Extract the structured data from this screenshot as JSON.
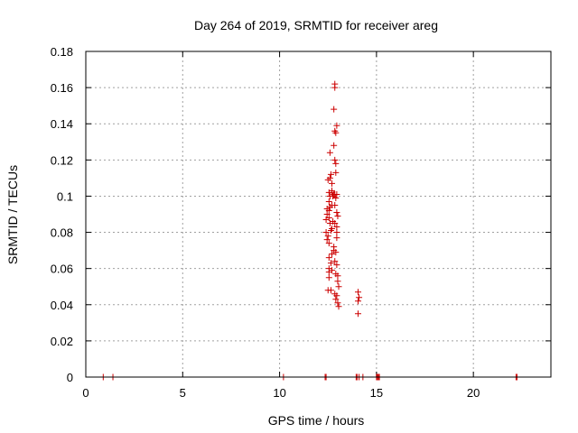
{
  "chart_data": {
    "type": "scatter",
    "title": "Day 264 of 2019, SRMTID for receiver areg",
    "xlabel": "GPS time / hours",
    "ylabel": "SRMTID / TECUs",
    "xlim": [
      0,
      24
    ],
    "ylim": [
      0,
      0.18
    ],
    "xticks": [
      0,
      5,
      10,
      15,
      20
    ],
    "yticks": [
      0,
      0.02,
      0.04,
      0.06,
      0.08,
      0.1,
      0.12,
      0.14,
      0.16,
      0.18
    ],
    "x_tick_labels": [
      "0",
      "5",
      "10",
      "15",
      "20"
    ],
    "y_tick_labels": [
      "0",
      "0.02",
      "0.04",
      "0.06",
      "0.08",
      "0.1",
      "0.12",
      "0.14",
      "0.16",
      "0.18"
    ],
    "grid": true,
    "marker": "+",
    "marker_color": "#cc0000",
    "series": [
      {
        "name": "SRMTID",
        "points": [
          [
            0.9,
            0
          ],
          [
            1.4,
            0
          ],
          [
            10.2,
            0
          ],
          [
            12.35,
            0
          ],
          [
            12.4,
            0
          ],
          [
            13.95,
            0
          ],
          [
            14.0,
            0
          ],
          [
            14.1,
            0
          ],
          [
            14.3,
            0
          ],
          [
            15.0,
            0
          ],
          [
            15.05,
            0
          ],
          [
            15.1,
            0
          ],
          [
            15.15,
            0
          ],
          [
            22.2,
            0
          ],
          [
            22.25,
            0
          ],
          [
            12.85,
            0.162
          ],
          [
            12.85,
            0.16
          ],
          [
            12.8,
            0.148
          ],
          [
            12.95,
            0.139
          ],
          [
            12.85,
            0.136
          ],
          [
            12.9,
            0.135
          ],
          [
            12.8,
            0.128
          ],
          [
            12.6,
            0.124
          ],
          [
            12.85,
            0.12
          ],
          [
            12.9,
            0.118
          ],
          [
            12.9,
            0.113
          ],
          [
            12.65,
            0.112
          ],
          [
            12.6,
            0.11
          ],
          [
            12.5,
            0.109
          ],
          [
            12.7,
            0.107
          ],
          [
            12.7,
            0.103
          ],
          [
            12.55,
            0.102
          ],
          [
            12.7,
            0.102
          ],
          [
            12.8,
            0.101
          ],
          [
            12.85,
            0.101
          ],
          [
            12.95,
            0.101
          ],
          [
            12.6,
            0.1
          ],
          [
            12.75,
            0.1
          ],
          [
            12.9,
            0.099
          ],
          [
            12.55,
            0.097
          ],
          [
            12.85,
            0.095
          ],
          [
            12.7,
            0.095
          ],
          [
            12.6,
            0.094
          ],
          [
            12.45,
            0.093
          ],
          [
            12.55,
            0.092
          ],
          [
            12.95,
            0.091
          ],
          [
            12.45,
            0.09
          ],
          [
            13.0,
            0.089
          ],
          [
            12.55,
            0.088
          ],
          [
            12.4,
            0.087
          ],
          [
            12.75,
            0.086
          ],
          [
            12.85,
            0.085
          ],
          [
            12.6,
            0.085
          ],
          [
            12.95,
            0.083
          ],
          [
            12.7,
            0.082
          ],
          [
            12.65,
            0.081
          ],
          [
            12.95,
            0.08
          ],
          [
            12.4,
            0.08
          ],
          [
            12.5,
            0.078
          ],
          [
            12.95,
            0.077
          ],
          [
            12.45,
            0.076
          ],
          [
            12.55,
            0.074
          ],
          [
            12.8,
            0.072
          ],
          [
            12.8,
            0.07
          ],
          [
            12.9,
            0.069
          ],
          [
            12.7,
            0.068
          ],
          [
            12.55,
            0.066
          ],
          [
            12.85,
            0.064
          ],
          [
            12.65,
            0.063
          ],
          [
            12.95,
            0.062
          ],
          [
            12.55,
            0.06
          ],
          [
            12.7,
            0.059
          ],
          [
            12.55,
            0.058
          ],
          [
            12.9,
            0.057
          ],
          [
            13.0,
            0.056
          ],
          [
            12.55,
            0.055
          ],
          [
            13.0,
            0.053
          ],
          [
            13.05,
            0.05
          ],
          [
            12.5,
            0.048
          ],
          [
            12.65,
            0.048
          ],
          [
            12.85,
            0.046
          ],
          [
            12.95,
            0.045
          ],
          [
            12.9,
            0.043
          ],
          [
            13.0,
            0.041
          ],
          [
            13.05,
            0.039
          ],
          [
            14.05,
            0.047
          ],
          [
            14.1,
            0.044
          ],
          [
            14.05,
            0.042
          ],
          [
            14.05,
            0.035
          ]
        ]
      }
    ]
  }
}
